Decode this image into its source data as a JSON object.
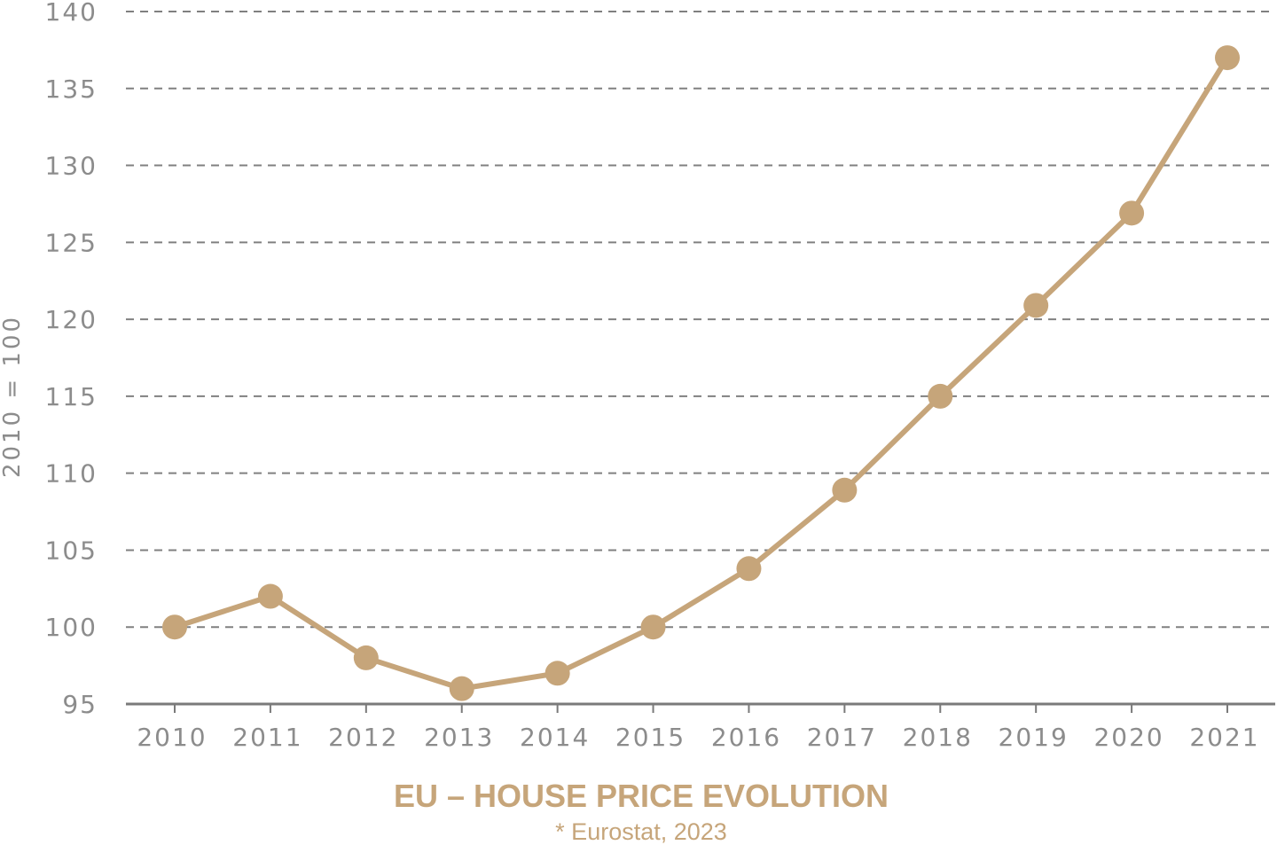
{
  "colors": {
    "series": "#c6a57a",
    "grid": "#808080",
    "axis": "#7a7a7a",
    "text": "#8c8c8c"
  },
  "chart_data": {
    "type": "line",
    "title": "EU – HOUSE PRICE EVOLUTION",
    "subtitle": "* Eurostat, 2023",
    "xlabel": "",
    "ylabel": "2010 = 100",
    "categories": [
      "2010",
      "2011",
      "2012",
      "2013",
      "2014",
      "2015",
      "2016",
      "2017",
      "2018",
      "2019",
      "2020",
      "2021"
    ],
    "series": [
      {
        "values": [
          100,
          102,
          98,
          96,
          97,
          100,
          103.8,
          108.9,
          115,
          120.9,
          126.9,
          137
        ]
      }
    ],
    "ylim": [
      95,
      140
    ],
    "yticks": [
      95,
      100,
      105,
      110,
      115,
      120,
      125,
      130,
      135,
      140
    ],
    "grid": true,
    "legend": "none",
    "markers": true
  }
}
